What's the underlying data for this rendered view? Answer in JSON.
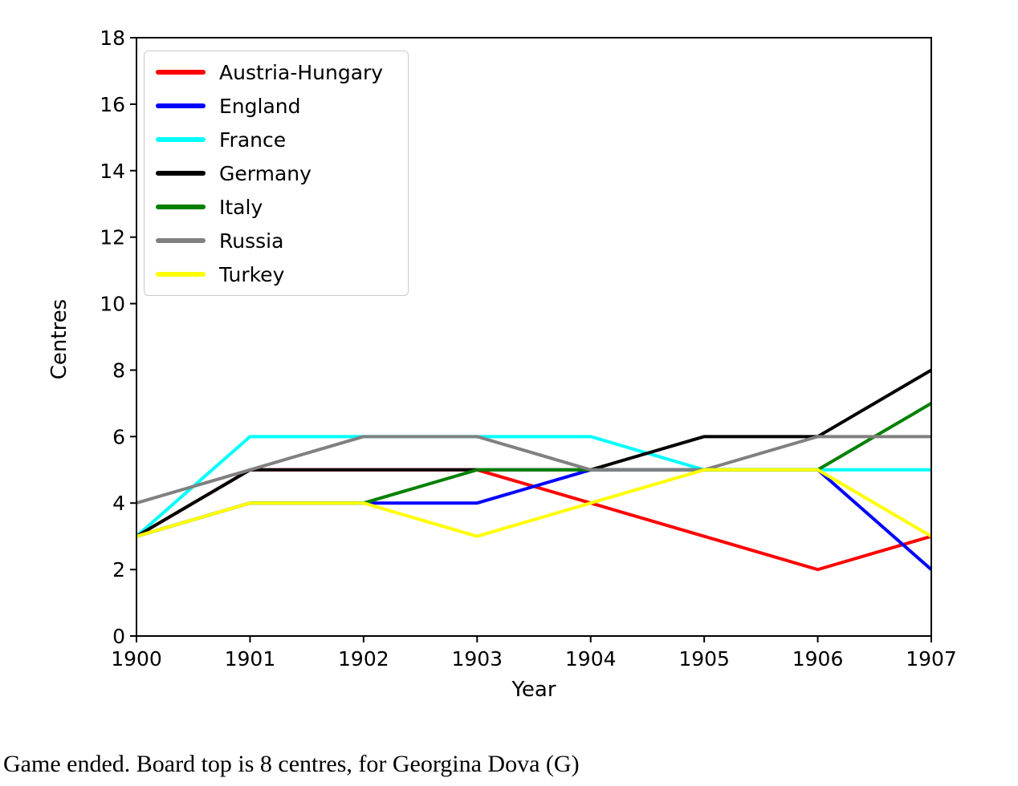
{
  "caption": {
    "text": "Game ended. Board top is 8 centres, for Georgina Dova (G)"
  },
  "chart_data": {
    "type": "line",
    "title": "",
    "xlabel": "Year",
    "ylabel": "Centres",
    "x": [
      1900,
      1901,
      1902,
      1903,
      1904,
      1905,
      1906,
      1907
    ],
    "xticks": [
      1900,
      1901,
      1902,
      1903,
      1904,
      1905,
      1906,
      1907
    ],
    "yticks": [
      0,
      2,
      4,
      6,
      8,
      10,
      12,
      14,
      16,
      18
    ],
    "xlim": [
      1900,
      1907
    ],
    "ylim": [
      0,
      18
    ],
    "grid": false,
    "legend_position": "upper left",
    "series": [
      {
        "name": "Austria-Hungary",
        "color": "#ff0000",
        "values": [
          3,
          5,
          5,
          5,
          4,
          3,
          2,
          3
        ]
      },
      {
        "name": "England",
        "color": "#0000ff",
        "values": [
          3,
          4,
          4,
          4,
          5,
          5,
          5,
          2
        ]
      },
      {
        "name": "France",
        "color": "#00ffff",
        "values": [
          3,
          6,
          6,
          6,
          6,
          5,
          5,
          5
        ]
      },
      {
        "name": "Germany",
        "color": "#000000",
        "values": [
          3,
          5,
          5,
          5,
          5,
          6,
          6,
          8
        ]
      },
      {
        "name": "Italy",
        "color": "#008000",
        "values": [
          3,
          4,
          4,
          5,
          5,
          5,
          5,
          7
        ]
      },
      {
        "name": "Russia",
        "color": "#808080",
        "values": [
          4,
          5,
          6,
          6,
          5,
          5,
          6,
          6
        ]
      },
      {
        "name": "Turkey",
        "color": "#ffff00",
        "values": [
          3,
          4,
          4,
          3,
          4,
          5,
          5,
          3
        ]
      }
    ]
  }
}
